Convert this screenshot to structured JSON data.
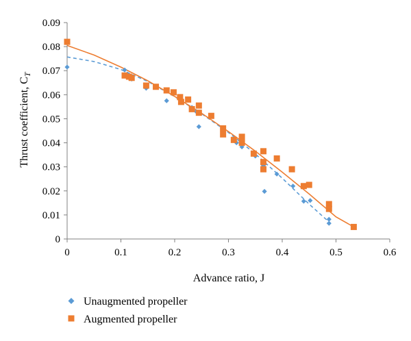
{
  "chart_data": {
    "type": "scatter",
    "title": "",
    "xlabel": "Advance ratio, J",
    "ylabel": "Thrust coefficient, C",
    "ylabel_subscript": "T",
    "xlim": [
      0,
      0.6
    ],
    "ylim": [
      0,
      0.09
    ],
    "x_ticks": [
      "0",
      "0.1",
      "0.2",
      "0.3",
      "0.4",
      "0.5",
      "0.6"
    ],
    "y_ticks": [
      "0",
      "0.01",
      "0.02",
      "0.03",
      "0.04",
      "0.05",
      "0.06",
      "0.07",
      "0.08",
      "0.09"
    ],
    "grid": false,
    "legend_position": "bottom-left",
    "series": [
      {
        "name": "Unaugmented propeller",
        "color": "#5b9bd5",
        "marker": "diamond",
        "trendline": "dashed",
        "trend_curve": [
          [
            0,
            0.0757
          ],
          [
            0.05,
            0.0738
          ],
          [
            0.1,
            0.0705
          ],
          [
            0.15,
            0.0655
          ],
          [
            0.2,
            0.0592
          ],
          [
            0.25,
            0.0521
          ],
          [
            0.3,
            0.0443
          ],
          [
            0.35,
            0.0354
          ],
          [
            0.4,
            0.0253
          ],
          [
            0.45,
            0.0145
          ],
          [
            0.49,
            0.0065
          ]
        ],
        "points": [
          [
            0,
            0.0715
          ],
          [
            0.107,
            0.0703
          ],
          [
            0.112,
            0.0685
          ],
          [
            0.117,
            0.0678
          ],
          [
            0.12,
            0.0665
          ],
          [
            0.147,
            0.0627
          ],
          [
            0.185,
            0.0575
          ],
          [
            0.232,
            0.0547
          ],
          [
            0.24,
            0.053
          ],
          [
            0.245,
            0.0467
          ],
          [
            0.29,
            0.0445
          ],
          [
            0.31,
            0.041
          ],
          [
            0.315,
            0.04
          ],
          [
            0.325,
            0.0383
          ],
          [
            0.35,
            0.0345
          ],
          [
            0.365,
            0.0305
          ],
          [
            0.367,
            0.0198
          ],
          [
            0.39,
            0.027
          ],
          [
            0.42,
            0.022
          ],
          [
            0.44,
            0.0157
          ],
          [
            0.452,
            0.016
          ],
          [
            0.487,
            0.0082
          ],
          [
            0.487,
            0.0065
          ]
        ]
      },
      {
        "name": "Augmented propeller",
        "color": "#ed7d31",
        "marker": "square",
        "trendline": "solid",
        "trend_curve": [
          [
            0,
            0.0805
          ],
          [
            0.05,
            0.0765
          ],
          [
            0.1,
            0.0715
          ],
          [
            0.15,
            0.0658
          ],
          [
            0.2,
            0.0593
          ],
          [
            0.25,
            0.0523
          ],
          [
            0.3,
            0.0447
          ],
          [
            0.35,
            0.0365
          ],
          [
            0.4,
            0.0278
          ],
          [
            0.45,
            0.0187
          ],
          [
            0.5,
            0.0092
          ],
          [
            0.533,
            0.005
          ]
        ],
        "points": [
          [
            0,
            0.082
          ],
          [
            0.107,
            0.068
          ],
          [
            0.115,
            0.0675
          ],
          [
            0.12,
            0.067
          ],
          [
            0.147,
            0.0638
          ],
          [
            0.165,
            0.0633
          ],
          [
            0.185,
            0.0618
          ],
          [
            0.198,
            0.061
          ],
          [
            0.21,
            0.059
          ],
          [
            0.212,
            0.057
          ],
          [
            0.225,
            0.058
          ],
          [
            0.232,
            0.054
          ],
          [
            0.245,
            0.0555
          ],
          [
            0.245,
            0.0525
          ],
          [
            0.268,
            0.0512
          ],
          [
            0.29,
            0.046
          ],
          [
            0.29,
            0.0435
          ],
          [
            0.31,
            0.0412
          ],
          [
            0.325,
            0.0425
          ],
          [
            0.325,
            0.04
          ],
          [
            0.347,
            0.0355
          ],
          [
            0.365,
            0.0365
          ],
          [
            0.365,
            0.032
          ],
          [
            0.365,
            0.029
          ],
          [
            0.39,
            0.0335
          ],
          [
            0.418,
            0.029
          ],
          [
            0.44,
            0.022
          ],
          [
            0.45,
            0.0225
          ],
          [
            0.487,
            0.0145
          ],
          [
            0.487,
            0.0125
          ],
          [
            0.533,
            0.005
          ]
        ]
      }
    ]
  }
}
